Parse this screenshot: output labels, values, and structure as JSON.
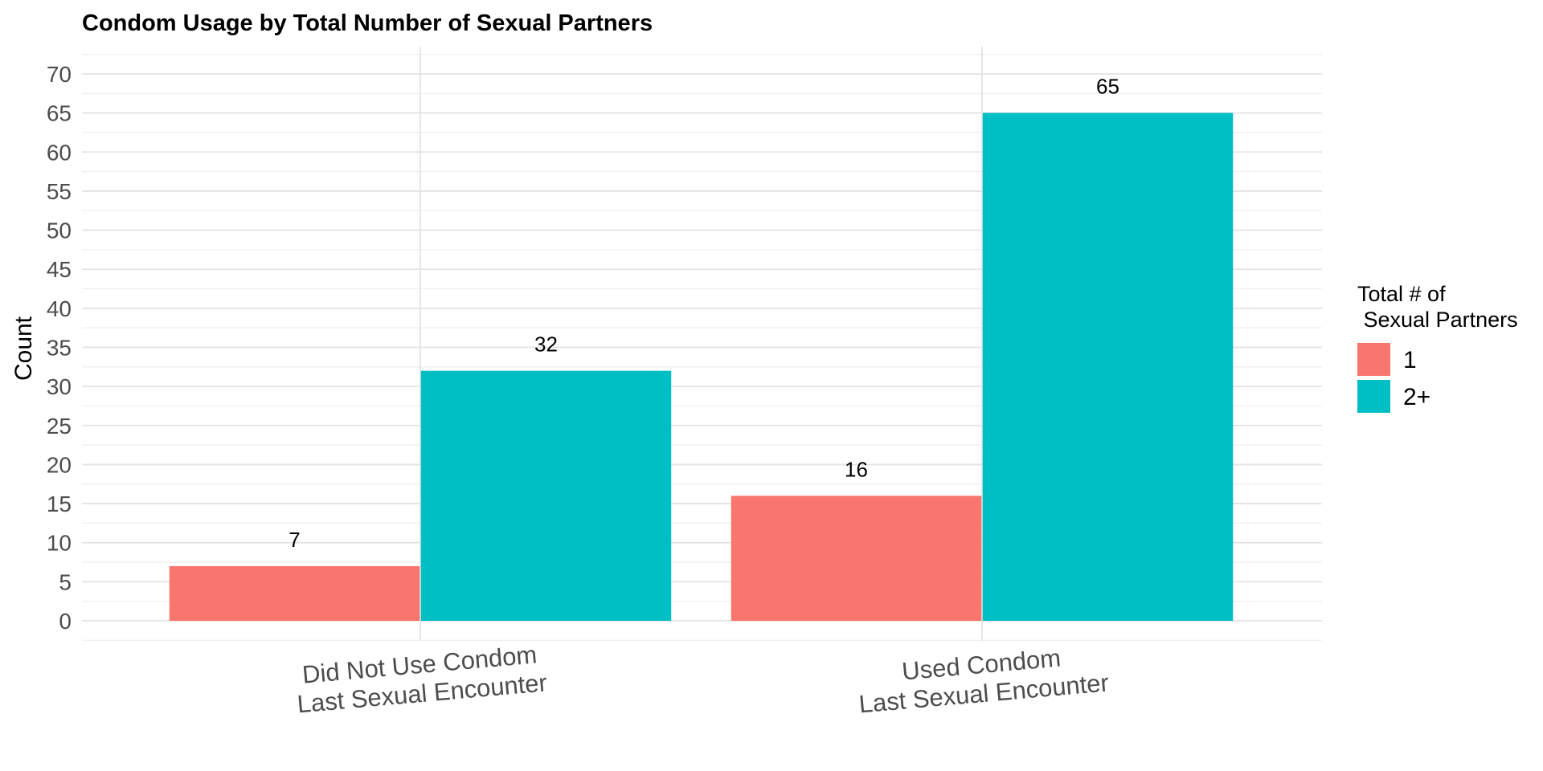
{
  "chart_data": {
    "type": "bar",
    "title": "Condom Usage by Total Number of Sexual Partners",
    "xlabel": "",
    "ylabel": "Count",
    "ylim": [
      0,
      70
    ],
    "y_ticks": [
      0,
      5,
      10,
      15,
      20,
      25,
      30,
      35,
      40,
      45,
      50,
      55,
      60,
      65,
      70
    ],
    "categories": [
      [
        "Did Not Use Condom",
        "Last Sexual Encounter"
      ],
      [
        "Used Condom",
        "Last Sexual Encounter"
      ]
    ],
    "series": [
      {
        "name": "1",
        "color": "#F8766D",
        "values": [
          7,
          16
        ]
      },
      {
        "name": "2+",
        "color": "#00BFC4",
        "values": [
          32,
          65
        ]
      }
    ],
    "legend": {
      "title_lines": [
        "Total # of",
        " Sexual Partners"
      ],
      "position": "right"
    },
    "grid": true,
    "x_tick_rotation_deg": -5
  }
}
